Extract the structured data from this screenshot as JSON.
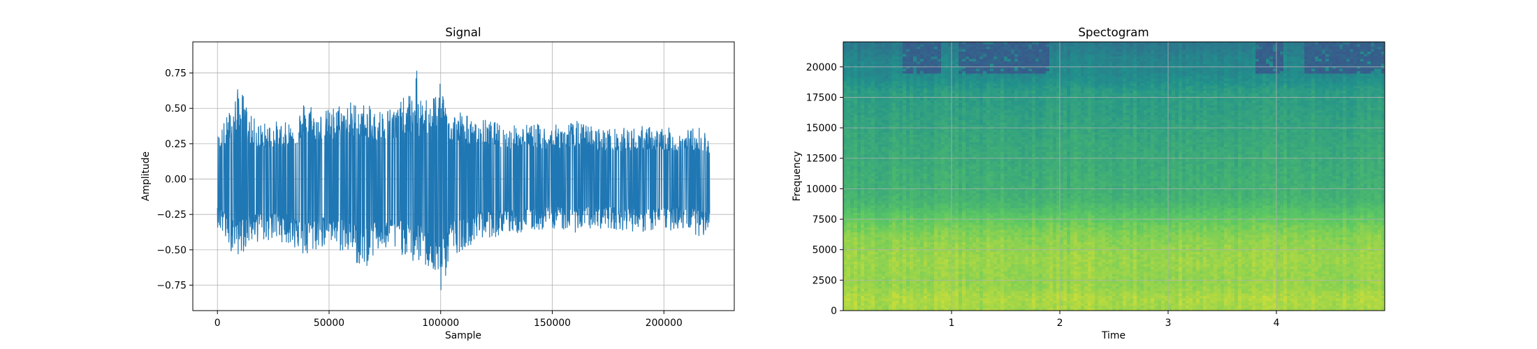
{
  "chart_data": [
    {
      "type": "line",
      "title": "Signal",
      "xlabel": "Sample",
      "ylabel": "Amplitude",
      "xlim": [
        -11025,
        231525
      ],
      "ylim": [
        -0.93,
        0.97
      ],
      "xticks": [
        0,
        50000,
        100000,
        150000,
        200000
      ],
      "xtick_labels": [
        "0",
        "50000",
        "100000",
        "150000",
        "200000"
      ],
      "yticks": [
        -0.75,
        -0.5,
        -0.25,
        0.0,
        0.25,
        0.5,
        0.75
      ],
      "ytick_labels": [
        "−0.75",
        "−0.50",
        "−0.25",
        "0.00",
        "0.25",
        "0.50",
        "0.75"
      ],
      "grid": true,
      "series": [
        {
          "color": "#1f77b4",
          "x_start": 0,
          "x_end": 220500,
          "envelope_x": [
            0,
            5000,
            10000,
            15000,
            20000,
            25000,
            30000,
            35000,
            40000,
            45000,
            50000,
            55000,
            60000,
            65000,
            70000,
            75000,
            80000,
            85000,
            88000,
            89000,
            90000,
            95000,
            100000,
            105000,
            110000,
            115000,
            120000,
            130000,
            140000,
            150000,
            160000,
            170000,
            180000,
            190000,
            200000,
            210000,
            215000,
            220500
          ],
          "envelope_upper": [
            0.32,
            0.48,
            0.68,
            0.45,
            0.4,
            0.42,
            0.4,
            0.45,
            0.6,
            0.48,
            0.5,
            0.55,
            0.56,
            0.55,
            0.5,
            0.52,
            0.53,
            0.6,
            0.62,
            0.9,
            0.55,
            0.6,
            0.68,
            0.48,
            0.5,
            0.4,
            0.43,
            0.38,
            0.4,
            0.38,
            0.42,
            0.37,
            0.36,
            0.38,
            0.37,
            0.35,
            0.38,
            0.34
          ],
          "envelope_lower": [
            -0.34,
            -0.5,
            -0.55,
            -0.45,
            -0.45,
            -0.44,
            -0.45,
            -0.5,
            -0.58,
            -0.5,
            -0.48,
            -0.52,
            -0.55,
            -0.67,
            -0.55,
            -0.52,
            -0.53,
            -0.55,
            -0.62,
            -0.58,
            -0.6,
            -0.65,
            -0.83,
            -0.55,
            -0.5,
            -0.45,
            -0.42,
            -0.4,
            -0.38,
            -0.35,
            -0.38,
            -0.35,
            -0.36,
            -0.38,
            -0.37,
            -0.36,
            -0.4,
            -0.43
          ]
        }
      ]
    },
    {
      "type": "heatmap",
      "title": "Spectogram",
      "xlabel": "Time",
      "ylabel": "Frequency",
      "xlim": [
        0.0,
        5.0
      ],
      "ylim": [
        0,
        22050
      ],
      "xticks": [
        1,
        2,
        3,
        4
      ],
      "xtick_labels": [
        "1",
        "2",
        "3",
        "4"
      ],
      "yticks": [
        0,
        2500,
        5000,
        7500,
        10000,
        12500,
        15000,
        17500,
        20000
      ],
      "ytick_labels": [
        "0",
        "2500",
        "5000",
        "7500",
        "10000",
        "12500",
        "15000",
        "17500",
        "20000"
      ],
      "grid": true,
      "colormap": "viridis",
      "colormap_stops": [
        "#440154",
        "#3b528b",
        "#21918c",
        "#5ec962",
        "#fde725"
      ],
      "frequency_profile_hz": [
        0,
        1000,
        2000,
        3000,
        4000,
        5000,
        6000,
        7000,
        8000,
        9000,
        10000,
        12000,
        14000,
        16000,
        18000,
        18800,
        19500,
        20500,
        21500,
        22050
      ],
      "frequency_profile_level": [
        0.86,
        0.88,
        0.84,
        0.84,
        0.85,
        0.84,
        0.82,
        0.78,
        0.72,
        0.66,
        0.64,
        0.62,
        0.6,
        0.57,
        0.55,
        0.5,
        0.47,
        0.46,
        0.42,
        0.4
      ],
      "dark_bands_time": [
        [
          0.55,
          0.9
        ],
        [
          1.05,
          1.9
        ],
        [
          3.8,
          4.05
        ],
        [
          4.25,
          5.0
        ]
      ],
      "dark_band_min_hz": 19500
    }
  ]
}
